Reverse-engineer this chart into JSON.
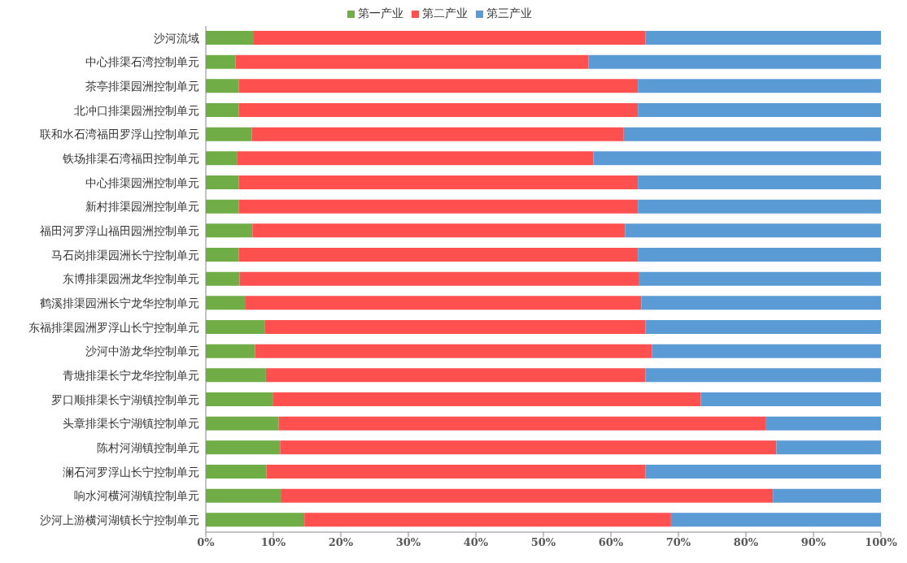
{
  "chart_data": {
    "type": "bar",
    "orientation": "horizontal",
    "stacked": true,
    "categories": [
      "沙河流域",
      "中心排渠石湾控制单元",
      "茶亭排渠园洲控制单元",
      "北冲口排渠园洲控制单元",
      "联和水石湾福田罗浮山控制单元",
      "铁场排渠石湾福田控制单元",
      "中心排渠园洲控制单元",
      "新村排渠园洲控制单元",
      "福田河罗浮山福田园洲控制单元",
      "马石岗排渠园洲长宁控制单元",
      "东博排渠园洲龙华控制单元",
      "鹤溪排渠园洲长宁龙华控制单元",
      "东福排渠园洲罗浮山长宁控制单元",
      "沙河中游龙华控制单元",
      "青塘排渠长宁龙华控制单元",
      "罗口顺排渠长宁湖镇控制单元",
      "头章排渠长宁湖镇控制单元",
      "陈村河湖镇控制单元",
      "澜石河罗浮山长宁控制单元",
      "响水河横河湖镇控制单元",
      "沙河上游横河湖镇长宁控制单元"
    ],
    "series": [
      {
        "name": "第一产业",
        "color": "#70ad47",
        "values": [
          7.0,
          4.4,
          4.9,
          4.9,
          6.8,
          4.6,
          4.9,
          4.9,
          6.9,
          4.9,
          5.0,
          5.8,
          8.7,
          7.3,
          8.9,
          9.9,
          10.8,
          11.0,
          9.0,
          11.1,
          14.6
        ]
      },
      {
        "name": "第二产业",
        "color": "#ff5050",
        "values": [
          58.1,
          52.3,
          59.1,
          59.1,
          55.1,
          52.8,
          59.1,
          59.1,
          55.2,
          59.1,
          59.2,
          58.7,
          56.4,
          58.8,
          56.2,
          63.4,
          72.1,
          73.5,
          56.1,
          72.9,
          54.3
        ]
      },
      {
        "name": "第三产业",
        "color": "#5b9bd5",
        "values": [
          34.9,
          43.3,
          36.0,
          36.0,
          38.1,
          42.6,
          36.0,
          36.0,
          37.9,
          36.0,
          35.8,
          35.5,
          34.9,
          33.9,
          34.9,
          26.7,
          17.1,
          15.5,
          34.9,
          16.0,
          31.1
        ]
      }
    ],
    "xlim": [
      0,
      100
    ],
    "xticks": [
      {
        "value": 0,
        "label": "0%"
      },
      {
        "value": 10,
        "label": "10%"
      },
      {
        "value": 20,
        "label": "20%"
      },
      {
        "value": 30,
        "label": "30%"
      },
      {
        "value": 40,
        "label": "40%"
      },
      {
        "value": 50,
        "label": "50%"
      },
      {
        "value": 60,
        "label": "60%"
      },
      {
        "value": 70,
        "label": "70%"
      },
      {
        "value": 80,
        "label": "80%"
      },
      {
        "value": 90,
        "label": "90%"
      },
      {
        "value": 100,
        "label": "100%"
      }
    ],
    "grid": false,
    "legend": "top"
  }
}
